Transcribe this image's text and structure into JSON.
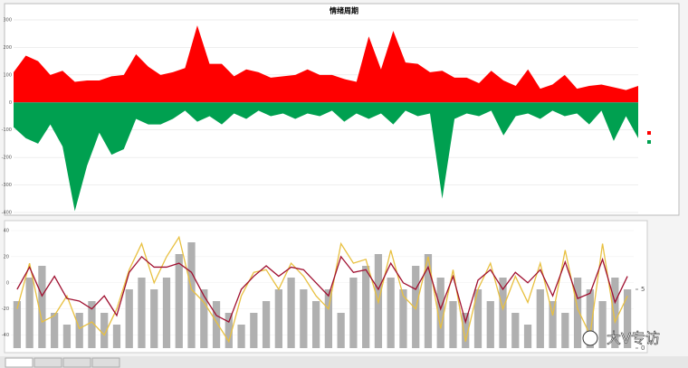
{
  "chart_data": [
    {
      "type": "area",
      "title": "情绪周期",
      "series": [
        {
          "color": "#ff0000",
          "values": [
            110,
            170,
            150,
            100,
            115,
            75,
            80,
            80,
            95,
            100,
            175,
            130,
            100,
            110,
            125,
            280,
            140,
            140,
            95,
            120,
            110,
            90,
            95,
            100,
            120,
            100,
            100,
            85,
            75,
            240,
            120,
            260,
            145,
            140,
            110,
            115,
            90,
            90,
            70,
            115,
            80,
            60,
            120,
            50,
            65,
            100,
            50,
            60,
            65,
            55,
            45,
            60
          ]
        },
        {
          "color": "#00a050",
          "values": [
            -90,
            -130,
            -150,
            -80,
            -160,
            -395,
            -230,
            -110,
            -190,
            -170,
            -60,
            -80,
            -80,
            -60,
            -30,
            -70,
            -50,
            -80,
            -40,
            -60,
            -30,
            -50,
            -40,
            -60,
            -40,
            -50,
            -30,
            -70,
            -40,
            -60,
            -40,
            -80,
            -30,
            -50,
            -40,
            -350,
            -60,
            -40,
            -50,
            -30,
            -120,
            -50,
            -40,
            -60,
            -30,
            -50,
            -40,
            -80,
            -30,
            -140,
            -50,
            -130
          ]
        }
      ],
      "ylim": [
        -400,
        300
      ],
      "yticks": [
        -400,
        -300,
        -200,
        -100,
        0,
        100,
        200,
        300
      ],
      "grid": true,
      "legend": "right"
    },
    {
      "type": "combo",
      "series": [
        {
          "color": "#b0b0b0",
          "axis": "y2",
          "kind": "bar",
          "values": [
            4,
            6,
            7,
            3,
            2,
            3,
            4,
            3,
            2,
            5,
            6,
            5,
            6,
            8,
            9,
            5,
            4,
            3,
            2,
            3,
            4,
            5,
            6,
            5,
            4,
            5,
            3,
            6,
            7,
            8,
            6,
            5,
            7,
            8,
            6,
            4,
            3,
            5,
            4,
            6,
            3,
            2,
            5,
            4,
            3,
            6,
            5,
            4,
            6,
            5
          ]
        },
        {
          "color": "#e8c040",
          "kind": "line",
          "values": [
            -20,
            15,
            -30,
            -25,
            -10,
            -35,
            -30,
            -40,
            -20,
            10,
            30,
            0,
            20,
            35,
            -5,
            -15,
            -30,
            -45,
            -10,
            8,
            10,
            -5,
            15,
            5,
            -10,
            -20,
            30,
            15,
            18,
            -15,
            25,
            -10,
            -20,
            20,
            -35,
            10,
            -45,
            -5,
            15,
            -20,
            5,
            -15,
            15,
            -25,
            25,
            -20,
            -40,
            30,
            -30,
            -10
          ]
        },
        {
          "color": "#a01030",
          "kind": "line",
          "values": [
            -5,
            12,
            -10,
            5,
            -12,
            -14,
            -20,
            -10,
            -25,
            8,
            20,
            12,
            12,
            15,
            8,
            -10,
            -25,
            -30,
            -5,
            5,
            13,
            5,
            12,
            10,
            0,
            -10,
            20,
            8,
            10,
            -5,
            15,
            0,
            -5,
            12,
            -20,
            5,
            -30,
            2,
            10,
            -5,
            8,
            0,
            10,
            -10,
            16,
            -12,
            -8,
            18,
            -15,
            5
          ]
        }
      ],
      "ylim": [
        -50,
        40
      ],
      "yticks": [
        -40,
        -20,
        0,
        20,
        40
      ],
      "y2lim": [
        0,
        10
      ],
      "y2ticks": [
        0,
        5
      ],
      "grid": true
    }
  ],
  "watermark": "大V专访"
}
